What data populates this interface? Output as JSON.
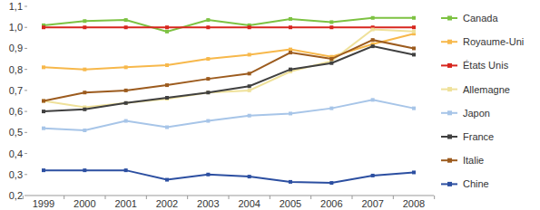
{
  "chart_data": {
    "type": "line",
    "categories": [
      "1999",
      "2000",
      "2001",
      "2002",
      "2003",
      "2004",
      "2005",
      "2006",
      "2007",
      "2008"
    ],
    "series": [
      {
        "name": "Canada",
        "color": "#7dc242",
        "marker": "square",
        "values": [
          1.01,
          1.03,
          1.035,
          0.98,
          1.035,
          1.01,
          1.04,
          1.025,
          1.045,
          1.045
        ]
      },
      {
        "name": "Royaume-Uni",
        "color": "#f7b84b",
        "marker": "square",
        "values": [
          0.81,
          0.8,
          0.81,
          0.82,
          0.85,
          0.87,
          0.895,
          0.86,
          0.92,
          0.97
        ]
      },
      {
        "name": "États Unis",
        "color": "#d7261e",
        "marker": "square",
        "values": [
          1.0,
          1.0,
          1.0,
          1.0,
          1.0,
          1.0,
          1.0,
          1.0,
          1.0,
          1.0
        ]
      },
      {
        "name": "Allemagne",
        "color": "#efe19a",
        "marker": "square",
        "values": [
          0.65,
          0.62,
          0.64,
          0.66,
          0.69,
          0.7,
          0.79,
          0.84,
          0.99,
          0.98
        ]
      },
      {
        "name": "Japon",
        "color": "#a7c5e8",
        "marker": "square",
        "values": [
          0.52,
          0.51,
          0.555,
          0.525,
          0.555,
          0.58,
          0.59,
          0.615,
          0.655,
          0.615
        ]
      },
      {
        "name": "France",
        "color": "#404040",
        "marker": "square",
        "values": [
          0.6,
          0.61,
          0.64,
          0.665,
          0.69,
          0.72,
          0.8,
          0.83,
          0.91,
          0.87
        ]
      },
      {
        "name": "Italie",
        "color": "#9c5b1e",
        "marker": "square",
        "values": [
          0.65,
          0.69,
          0.7,
          0.725,
          0.755,
          0.78,
          0.88,
          0.85,
          0.94,
          0.9
        ]
      },
      {
        "name": "Chine",
        "color": "#2c4fa1",
        "marker": "square",
        "values": [
          0.32,
          0.32,
          0.32,
          0.275,
          0.3,
          0.29,
          0.265,
          0.26,
          0.295,
          0.31
        ]
      }
    ],
    "ylim": [
      0.2,
      1.1
    ],
    "yticks": [
      {
        "value": 0.2,
        "label": "0,2"
      },
      {
        "value": 0.3,
        "label": "0,3"
      },
      {
        "value": 0.4,
        "label": "0,4"
      },
      {
        "value": 0.5,
        "label": "0,5"
      },
      {
        "value": 0.6,
        "label": "0,6"
      },
      {
        "value": 0.7,
        "label": "0,7"
      },
      {
        "value": 0.8,
        "label": "0,8"
      },
      {
        "value": 0.9,
        "label": "0,9"
      },
      {
        "value": 1.0,
        "label": "1,0"
      },
      {
        "value": 1.1,
        "label": "1,1"
      }
    ],
    "grid": false,
    "legend": "right"
  }
}
